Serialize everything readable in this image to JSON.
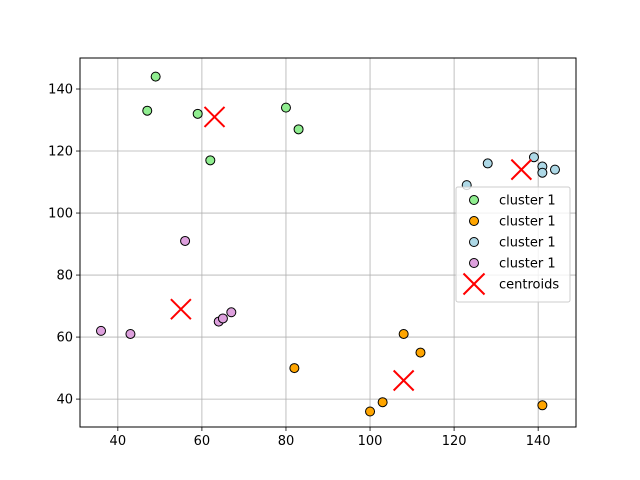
{
  "chart_data": {
    "type": "scatter",
    "title": "",
    "xlabel": "",
    "ylabel": "",
    "xlim": [
      31,
      149
    ],
    "ylim": [
      31,
      150
    ],
    "x_ticks": [
      40,
      60,
      80,
      100,
      120,
      140
    ],
    "y_ticks": [
      40,
      60,
      80,
      100,
      120,
      140
    ],
    "grid": true,
    "legend_position": "right",
    "series": [
      {
        "name": "cluster 1",
        "marker": "circle",
        "color": "#90ee90",
        "points": [
          [
            49,
            144
          ],
          [
            47,
            133
          ],
          [
            59,
            132
          ],
          [
            62,
            117
          ],
          [
            80,
            134
          ],
          [
            83,
            127
          ]
        ]
      },
      {
        "name": "cluster 1",
        "marker": "circle",
        "color": "#ffa500",
        "points": [
          [
            82,
            50
          ],
          [
            100,
            36
          ],
          [
            103,
            39
          ],
          [
            108,
            61
          ],
          [
            112,
            55
          ],
          [
            141,
            38
          ]
        ]
      },
      {
        "name": "cluster 1",
        "marker": "circle",
        "color": "#add8e6",
        "points": [
          [
            123,
            109
          ],
          [
            128,
            116
          ],
          [
            139,
            118
          ],
          [
            141,
            115
          ],
          [
            141,
            113
          ],
          [
            144,
            114
          ]
        ]
      },
      {
        "name": "cluster 1",
        "marker": "circle",
        "color": "#dda0dd",
        "points": [
          [
            36,
            62
          ],
          [
            43,
            61
          ],
          [
            56,
            91
          ],
          [
            64,
            65
          ],
          [
            65,
            66
          ],
          [
            67,
            68
          ]
        ]
      },
      {
        "name": "centroids",
        "marker": "x",
        "color": "#ff0000",
        "points": [
          [
            63,
            131
          ],
          [
            55,
            69
          ],
          [
            108,
            46
          ],
          [
            136,
            114
          ]
        ]
      }
    ]
  }
}
